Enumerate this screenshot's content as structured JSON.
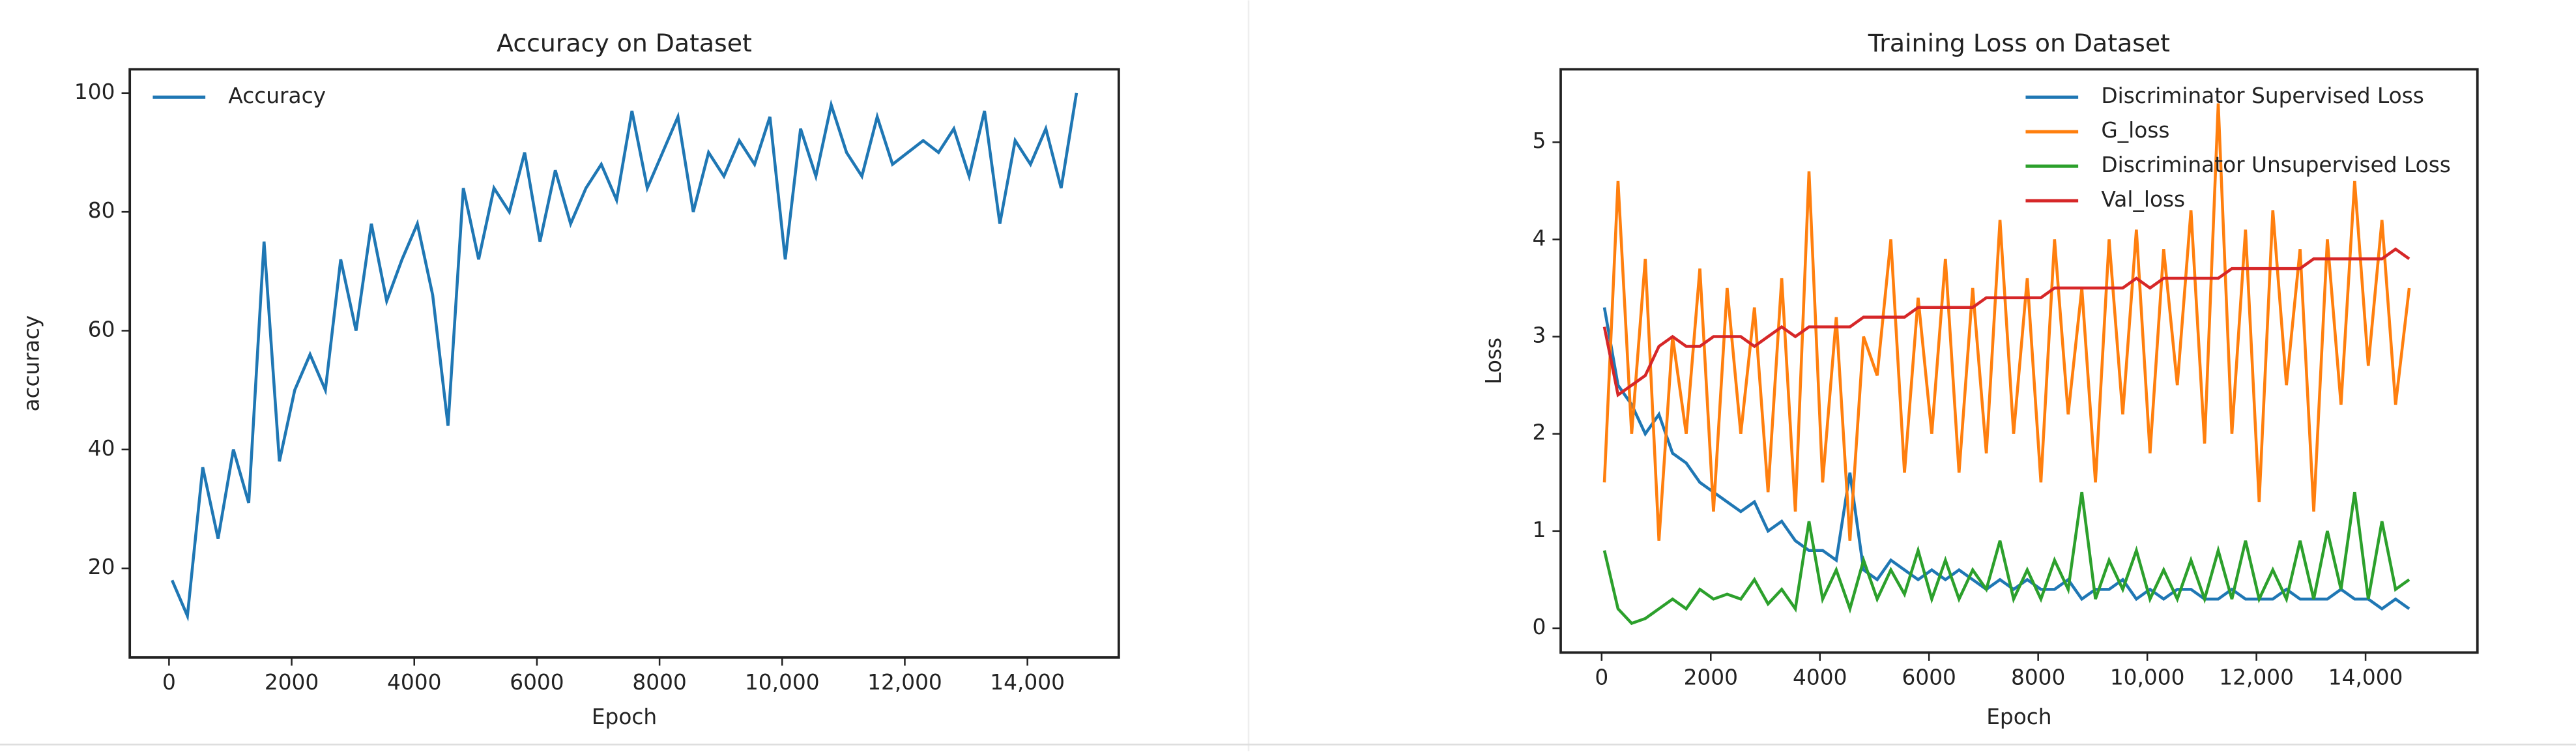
{
  "chart_data": [
    {
      "type": "line",
      "title": "Accuracy on Dataset",
      "x_label": "Epoch",
      "y_label": "accuracy",
      "legend": "upper left",
      "x": [
        50,
        300,
        550,
        800,
        1050,
        1300,
        1550,
        1800,
        2050,
        2300,
        2550,
        2800,
        3050,
        3300,
        3550,
        3800,
        4050,
        4300,
        4550,
        4800,
        5050,
        5300,
        5550,
        5800,
        6050,
        6300,
        6550,
        6800,
        7050,
        7300,
        7550,
        7800,
        8050,
        8300,
        8550,
        8800,
        9050,
        9300,
        9550,
        9800,
        10050,
        10300,
        10550,
        10800,
        11050,
        11300,
        11550,
        11800,
        12050,
        12300,
        12550,
        12800,
        13050,
        13300,
        13550,
        13800,
        14050,
        14300,
        14550,
        14800
      ],
      "series": [
        {
          "name": "Accuracy",
          "color": "#1f77b4",
          "values": [
            18,
            12,
            37,
            25,
            40,
            31,
            75,
            38,
            50,
            56,
            50,
            72,
            60,
            78,
            65,
            72,
            78,
            66,
            44,
            84,
            72,
            84,
            80,
            90,
            75,
            87,
            78,
            84,
            88,
            82,
            97,
            84,
            90,
            96,
            80,
            90,
            86,
            92,
            88,
            96,
            72,
            94,
            86,
            98,
            90,
            86,
            96,
            88,
            90,
            92,
            90,
            94,
            86,
            97,
            78,
            92,
            88,
            94,
            84,
            100
          ]
        }
      ],
      "xlim": [
        -640,
        15490
      ],
      "ylim": [
        5,
        104
      ],
      "xticks": [
        0,
        2000,
        4000,
        6000,
        8000,
        {
          "value": 10000,
          "label": "10,000"
        },
        {
          "value": 12000,
          "label": "12,000"
        },
        {
          "value": 14000,
          "label": "14,000"
        }
      ],
      "yticks": [
        20,
        40,
        60,
        80,
        100
      ]
    },
    {
      "type": "line",
      "title": "Training Loss on Dataset",
      "x_label": "Epoch",
      "y_label": "Loss",
      "legend": "upper right",
      "x": [
        50,
        300,
        550,
        800,
        1050,
        1300,
        1550,
        1800,
        2050,
        2300,
        2550,
        2800,
        3050,
        3300,
        3550,
        3800,
        4050,
        4300,
        4550,
        4800,
        5050,
        5300,
        5550,
        5800,
        6050,
        6300,
        6550,
        6800,
        7050,
        7300,
        7550,
        7800,
        8050,
        8300,
        8550,
        8800,
        9050,
        9300,
        9550,
        9800,
        10050,
        10300,
        10550,
        10800,
        11050,
        11300,
        11550,
        11800,
        12050,
        12300,
        12550,
        12800,
        13050,
        13300,
        13550,
        13800,
        14050,
        14300,
        14550,
        14800
      ],
      "series": [
        {
          "name": "Discriminator Supervised Loss",
          "color": "#1f77b4",
          "values": [
            3.3,
            2.5,
            2.3,
            2.0,
            2.2,
            1.8,
            1.7,
            1.5,
            1.4,
            1.3,
            1.2,
            1.3,
            1.0,
            1.1,
            0.9,
            0.8,
            0.8,
            0.7,
            1.6,
            0.6,
            0.5,
            0.7,
            0.6,
            0.5,
            0.6,
            0.5,
            0.6,
            0.5,
            0.4,
            0.5,
            0.4,
            0.5,
            0.4,
            0.4,
            0.5,
            0.3,
            0.4,
            0.4,
            0.5,
            0.3,
            0.4,
            0.3,
            0.4,
            0.4,
            0.3,
            0.3,
            0.4,
            0.3,
            0.3,
            0.3,
            0.4,
            0.3,
            0.3,
            0.3,
            0.4,
            0.3,
            0.3,
            0.2,
            0.3,
            0.2
          ]
        },
        {
          "name": "G_loss",
          "color": "#ff7f0e",
          "values": [
            1.5,
            4.6,
            2.0,
            3.8,
            0.9,
            3.0,
            2.0,
            3.7,
            1.2,
            3.5,
            2.0,
            3.3,
            1.4,
            3.6,
            1.2,
            4.7,
            1.5,
            3.2,
            0.9,
            3.0,
            2.6,
            4.0,
            1.6,
            3.4,
            2.0,
            3.8,
            1.6,
            3.5,
            1.8,
            4.2,
            2.0,
            3.6,
            1.5,
            4.0,
            2.2,
            3.5,
            1.5,
            4.0,
            2.2,
            4.1,
            1.8,
            3.9,
            2.5,
            4.3,
            1.9,
            5.4,
            2.0,
            4.1,
            1.3,
            4.3,
            2.5,
            3.9,
            1.2,
            4.0,
            2.3,
            4.6,
            2.7,
            4.2,
            2.3,
            3.5
          ]
        },
        {
          "name": "Discriminator Unsupervised Loss",
          "color": "#2ca02c",
          "values": [
            0.8,
            0.2,
            0.05,
            0.1,
            0.2,
            0.3,
            0.2,
            0.4,
            0.3,
            0.35,
            0.3,
            0.5,
            0.25,
            0.4,
            0.2,
            1.1,
            0.3,
            0.6,
            0.2,
            0.7,
            0.3,
            0.6,
            0.35,
            0.8,
            0.3,
            0.7,
            0.3,
            0.6,
            0.4,
            0.9,
            0.3,
            0.6,
            0.3,
            0.7,
            0.4,
            1.4,
            0.3,
            0.7,
            0.4,
            0.8,
            0.3,
            0.6,
            0.3,
            0.7,
            0.3,
            0.8,
            0.3,
            0.9,
            0.3,
            0.6,
            0.3,
            0.9,
            0.3,
            1.0,
            0.4,
            1.4,
            0.3,
            1.1,
            0.4,
            0.5
          ]
        },
        {
          "name": "Val_loss",
          "color": "#d62728",
          "values": [
            3.1,
            2.4,
            2.5,
            2.6,
            2.9,
            3.0,
            2.9,
            2.9,
            3.0,
            3.0,
            3.0,
            2.9,
            3.0,
            3.1,
            3.0,
            3.1,
            3.1,
            3.1,
            3.1,
            3.2,
            3.2,
            3.2,
            3.2,
            3.3,
            3.3,
            3.3,
            3.3,
            3.3,
            3.4,
            3.4,
            3.4,
            3.4,
            3.4,
            3.5,
            3.5,
            3.5,
            3.5,
            3.5,
            3.5,
            3.6,
            3.5,
            3.6,
            3.6,
            3.6,
            3.6,
            3.6,
            3.7,
            3.7,
            3.7,
            3.7,
            3.7,
            3.7,
            3.8,
            3.8,
            3.8,
            3.8,
            3.8,
            3.8,
            3.9,
            3.8
          ]
        }
      ],
      "xlim": [
        -750,
        16050
      ],
      "ylim": [
        -0.25,
        5.75
      ],
      "xticks": [
        0,
        2000,
        4000,
        6000,
        8000,
        {
          "value": 10000,
          "label": "10,000"
        },
        {
          "value": 12000,
          "label": "12,000"
        },
        {
          "value": 14000,
          "label": "14,000"
        }
      ],
      "yticks": [
        0,
        1,
        2,
        3,
        4,
        5
      ]
    }
  ]
}
